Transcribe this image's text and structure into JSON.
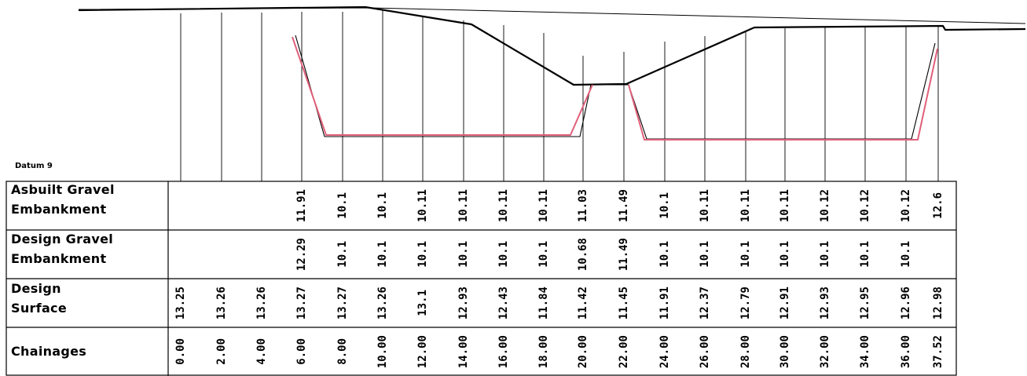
{
  "chart_data": {
    "type": "table",
    "title": "",
    "datum_label": "Datum 9",
    "chainages": [
      "0.00",
      "2.00",
      "4.00",
      "6.00",
      "8.00",
      "10.00",
      "12.00",
      "14.00",
      "16.00",
      "18.00",
      "20.00",
      "22.00",
      "24.00",
      "26.00",
      "28.00",
      "30.00",
      "32.00",
      "34.00",
      "36.00",
      "37.52"
    ],
    "rows": [
      {
        "label_line1": "Asbuilt Gravel",
        "label_line2": "Embankment",
        "values": [
          "",
          "",
          "",
          "11.91",
          "10.1",
          "10.1",
          "10.11",
          "10.11",
          "10.11",
          "10.11",
          "11.03",
          "11.49",
          "10.1",
          "10.11",
          "10.11",
          "10.11",
          "10.12",
          "10.12",
          "10.12",
          "12.6"
        ]
      },
      {
        "label_line1": "Design Gravel",
        "label_line2": "Embankment",
        "values": [
          "",
          "",
          "",
          "12.29",
          "10.1",
          "10.1",
          "10.1",
          "10.1",
          "10.1",
          "10.1",
          "10.68",
          "11.49",
          "10.1",
          "10.1",
          "10.1",
          "10.1",
          "10.1",
          "10.1",
          "10.1",
          ""
        ]
      },
      {
        "label_line1": "Design",
        "label_line2": "Surface",
        "values": [
          "13.25",
          "13.26",
          "13.26",
          "13.27",
          "13.27",
          "13.26",
          "13.1",
          "12.93",
          "12.43",
          "11.84",
          "11.42",
          "11.45",
          "11.91",
          "12.37",
          "12.79",
          "12.91",
          "12.93",
          "12.95",
          "12.96",
          "12.98"
        ]
      },
      {
        "label_line1": "Chainages",
        "label_line2": "",
        "values": [
          "0.00",
          "2.00",
          "4.00",
          "6.00",
          "8.00",
          "10.00",
          "12.00",
          "14.00",
          "16.00",
          "18.00",
          "20.00",
          "22.00",
          "24.00",
          "26.00",
          "28.00",
          "30.00",
          "32.00",
          "34.00",
          "36.00",
          "37.52"
        ]
      }
    ],
    "colors": {
      "design_line": "#000000",
      "asbuilt_line": "#e0607a",
      "grid": "#000000"
    }
  }
}
